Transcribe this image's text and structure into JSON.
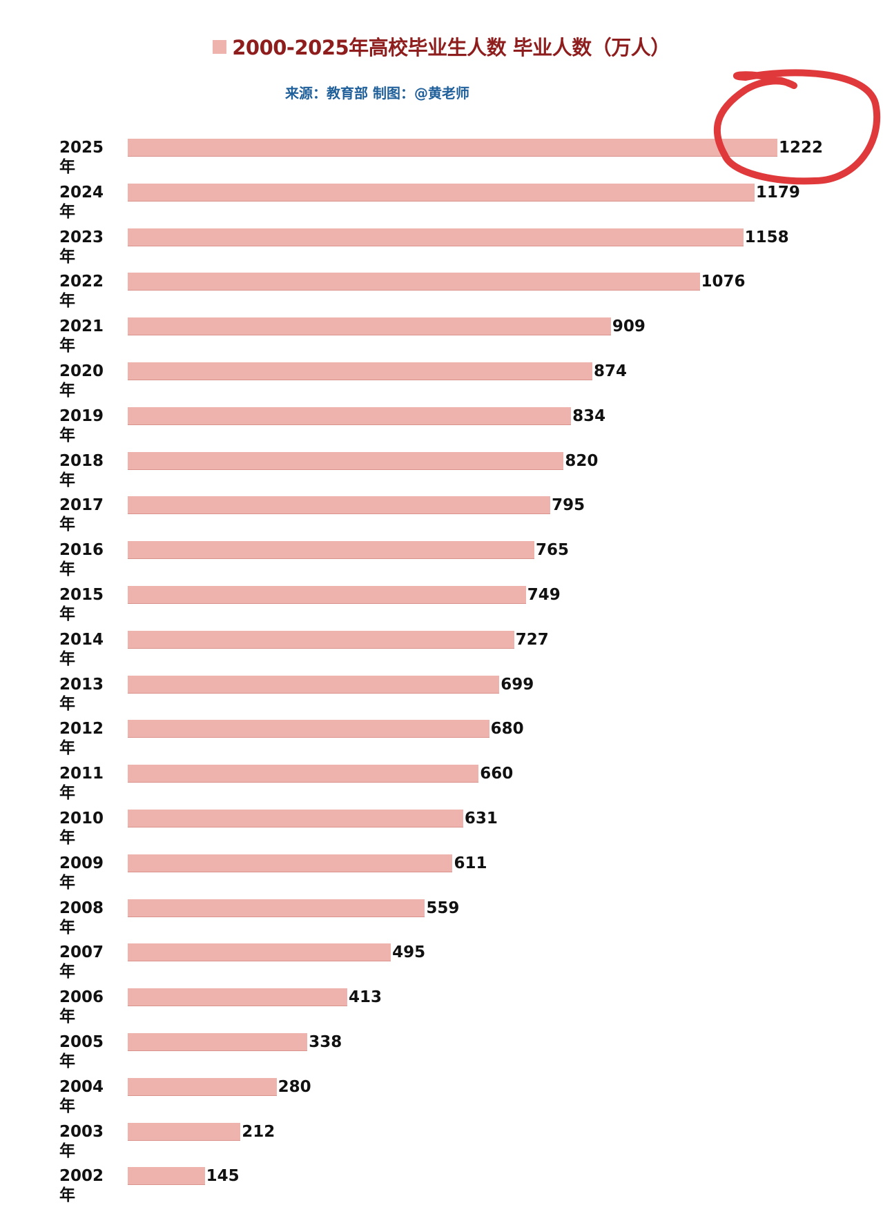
{
  "chart_data": {
    "type": "bar",
    "orientation": "horizontal",
    "title": "2000-2025年高校毕业生人数 毕业人数（万人）",
    "legend_label": "毕业人数（万人）",
    "subtitle": "来源：教育部  制图：@黄老师",
    "categories": [
      "2025年",
      "2024年",
      "2023年",
      "2022年",
      "2021年",
      "2020年",
      "2019年",
      "2018年",
      "2017年",
      "2016年",
      "2015年",
      "2014年",
      "2013年",
      "2012年",
      "2011年",
      "2010年",
      "2009年",
      "2008年",
      "2007年",
      "2006年",
      "2005年",
      "2004年",
      "2003年",
      "2002年"
    ],
    "values": [
      1222,
      1179,
      1158,
      1076,
      909,
      874,
      834,
      820,
      795,
      765,
      749,
      727,
      699,
      680,
      660,
      631,
      611,
      559,
      495,
      413,
      338,
      280,
      212,
      145
    ],
    "xlim": [
      0,
      1222
    ],
    "grid": false,
    "highlight": {
      "category": "2025年",
      "annotation": "red hand-drawn circle"
    },
    "colors": {
      "bar": "#efb3ad",
      "title": "#8e1d1d",
      "subtitle": "#1f5f9a",
      "annotation": "#e0393b"
    }
  }
}
